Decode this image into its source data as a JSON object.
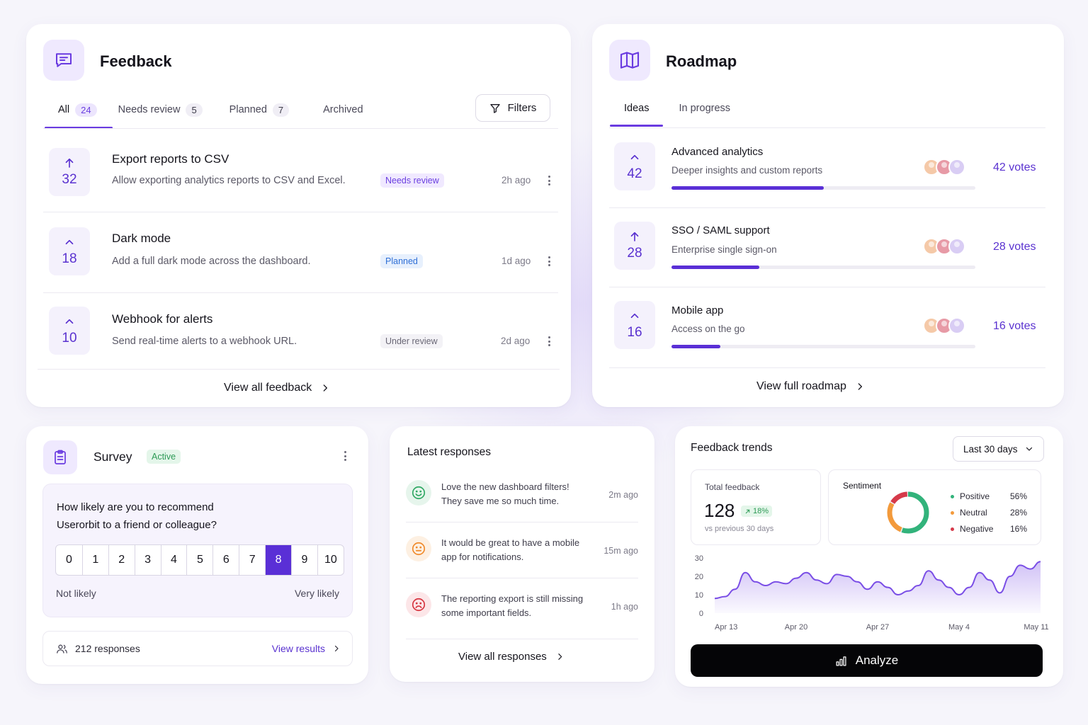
{
  "feedback": {
    "title": "Feedback",
    "tabs": [
      {
        "label": "All",
        "count": "24"
      },
      {
        "label": "Needs review",
        "count": "5"
      },
      {
        "label": "Planned",
        "count": "7"
      },
      {
        "label": "Archived",
        "count": ""
      }
    ],
    "filters_label": "Filters",
    "items": [
      {
        "votes": "32",
        "title": "Export reports to CSV",
        "desc": "Allow exporting analytics reports to CSV and Excel.",
        "status": "Needs review",
        "time": "2h ago"
      },
      {
        "votes": "18",
        "title": "Dark mode",
        "desc": "Add a full dark mode across the dashboard.",
        "status": "Planned",
        "time": "1d ago"
      },
      {
        "votes": "10",
        "title": "Webhook for alerts",
        "desc": "Send real-time alerts to a webhook URL.",
        "status": "Under review",
        "time": "2d ago"
      }
    ],
    "view_all": "View all feedback"
  },
  "roadmap": {
    "title": "Roadmap",
    "tabs": [
      {
        "label": "Ideas"
      },
      {
        "label": "In progress"
      }
    ],
    "items": [
      {
        "votes": "42",
        "title": "Advanced analytics",
        "desc": "Deeper insights and custom reports",
        "votes_label": "42 votes",
        "progress": 0.5
      },
      {
        "votes": "28",
        "title": "SSO / SAML support",
        "desc": "Enterprise single sign-on",
        "votes_label": "28 votes",
        "progress": 0.29
      },
      {
        "votes": "16",
        "title": "Mobile app",
        "desc": "Access on the go",
        "votes_label": "16 votes",
        "progress": 0.16
      }
    ],
    "avatar_colors": [
      "#f5c9a8",
      "#e79aa6",
      "#d9cdf4"
    ],
    "view_all": "View full roadmap"
  },
  "survey": {
    "title": "Survey",
    "status": "Active",
    "question_line1": "How likely are you to recommend",
    "question_line2": "Userorbit to a friend or colleague?",
    "scale": [
      "0",
      "1",
      "2",
      "3",
      "4",
      "5",
      "6",
      "7",
      "8",
      "9",
      "10"
    ],
    "selected": "8",
    "low_label": "Not likely",
    "high_label": "Very likely",
    "responses": "212 responses",
    "view_results": "View results"
  },
  "latest": {
    "title": "Latest responses",
    "items": [
      {
        "mood": "positive",
        "line1": "Love the new dashboard filters!",
        "line2": "They save me so much time.",
        "time": "2m ago"
      },
      {
        "mood": "neutral",
        "line1": "It would be great to have a mobile",
        "line2": "app for notifications.",
        "time": "15m ago"
      },
      {
        "mood": "negative",
        "line1": "The reporting export is still missing",
        "line2": "some important fields.",
        "time": "1h ago"
      }
    ],
    "view_all": "View all responses"
  },
  "trends": {
    "title": "Feedback trends",
    "range": "Last 30 days",
    "total_label": "Total feedback",
    "total_value": "128",
    "change": "18%",
    "compare": "vs previous 30 days",
    "sentiment_label": "Sentiment",
    "sentiment": [
      {
        "name": "Positive",
        "value": "56%",
        "pct": 56,
        "color": "#32b37b"
      },
      {
        "name": "Neutral",
        "value": "28%",
        "pct": 28,
        "color": "#f39a3b"
      },
      {
        "name": "Negative",
        "value": "16%",
        "pct": 16,
        "color": "#d63a4a"
      }
    ],
    "analyze": "Analyze"
  },
  "chart_data": {
    "type": "area",
    "x_ticks": [
      "Apr 13",
      "Apr 20",
      "Apr 27",
      "May 4",
      "May 11"
    ],
    "y_ticks": [
      "30",
      "20",
      "10",
      "0"
    ],
    "ylim": [
      0,
      30
    ],
    "series": [
      {
        "values": [
          8,
          9,
          13,
          22,
          17,
          15,
          17,
          16,
          19,
          22,
          18,
          16,
          21,
          20,
          17,
          13,
          17,
          14,
          10,
          12,
          15,
          23,
          18,
          14,
          10,
          14,
          22,
          18,
          11,
          20,
          26,
          24,
          28
        ]
      }
    ],
    "color": "#7a4ee6"
  }
}
